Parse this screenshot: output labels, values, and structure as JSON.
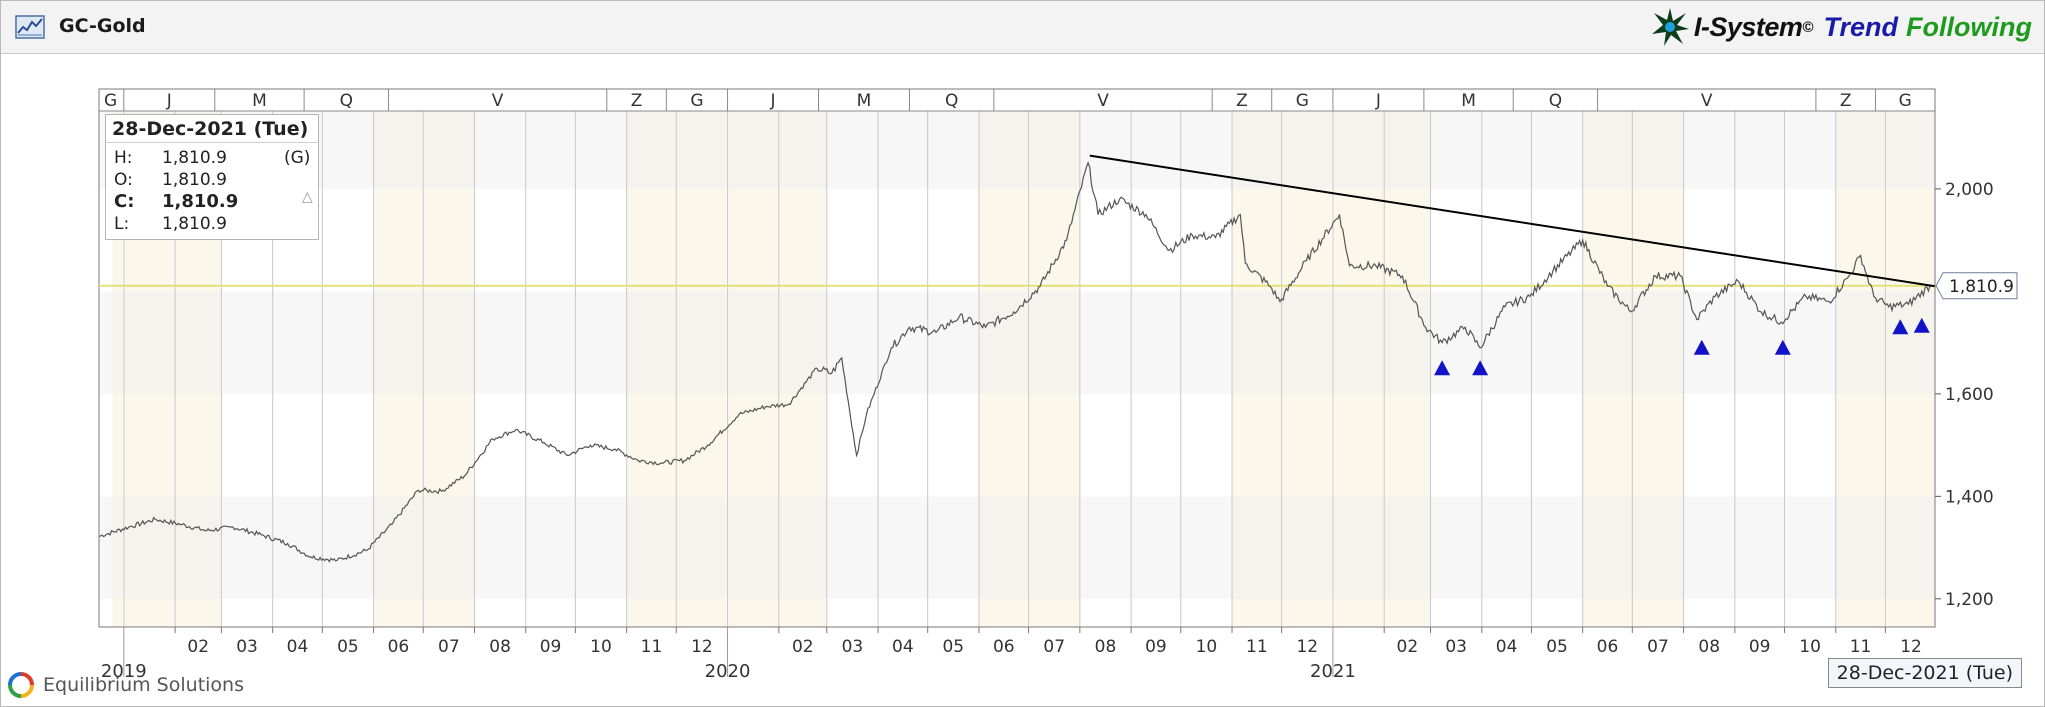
{
  "window": {
    "title": "GC-Gold",
    "brand": {
      "part1": "I-System",
      "sup": "©",
      "part2": "Trend",
      "part3": "Following"
    },
    "footer": "Equilibrium Solutions",
    "cursor_date": "28-Dec-2021 (Tue)"
  },
  "info_box": {
    "date": "28-Dec-2021 (Tue)",
    "tag": "(G)",
    "rows": [
      {
        "label": "H:",
        "value": "1,810.9"
      },
      {
        "label": "O:",
        "value": "1,810.9"
      },
      {
        "label": "C:",
        "value": "1,810.9"
      },
      {
        "label": "L:",
        "value": "1,810.9"
      }
    ]
  },
  "chart_data": {
    "type": "line",
    "title": "GC-Gold",
    "x_range": [
      "2018-12-17",
      "2021-12-31"
    ],
    "ylim": [
      1145,
      2195
    ],
    "y_ticks": [
      1200,
      1400,
      1600,
      2000
    ],
    "y_tick_labels": [
      "1,200",
      "1,400",
      "1,600",
      "2,000"
    ],
    "last_value": 1810.9,
    "last_value_label": "1,810.9",
    "month_labels": [
      "02",
      "03",
      "04",
      "05",
      "06",
      "07",
      "08",
      "09",
      "10",
      "11",
      "12",
      "02",
      "03",
      "04",
      "05",
      "06",
      "07",
      "08",
      "09",
      "10",
      "11",
      "12",
      "02",
      "03",
      "04",
      "05",
      "06",
      "07",
      "08",
      "09",
      "10",
      "11",
      "12"
    ],
    "year_labels": [
      "2019",
      "2020",
      "2021"
    ],
    "phase_labels": [
      "G",
      "J",
      "M",
      "Q",
      "V",
      "Z",
      "G",
      "J",
      "M",
      "Q",
      "V",
      "Z",
      "G",
      "J",
      "M",
      "Q",
      "V",
      "Z",
      "G",
      "J",
      "M",
      "Q",
      "V",
      "Z",
      "G"
    ],
    "series": [
      {
        "x": [
          "2018-12-17",
          "2019-01-04",
          "2019-01-20",
          "2019-02-05",
          "2019-02-20",
          "2019-03-08",
          "2019-03-25",
          "2019-04-10",
          "2019-04-24",
          "2019-05-10",
          "2019-05-28",
          "2019-06-12",
          "2019-06-28",
          "2019-07-12",
          "2019-07-26",
          "2019-08-12",
          "2019-08-26",
          "2019-09-12",
          "2019-09-26",
          "2019-10-10",
          "2019-10-25",
          "2019-11-08",
          "2019-11-22",
          "2019-12-06",
          "2019-12-20",
          "2020-01-08",
          "2020-01-24",
          "2020-02-07",
          "2020-02-24",
          "2020-03-04",
          "2020-03-10",
          "2020-03-19",
          "2020-03-25",
          "2020-04-09",
          "2020-04-20",
          "2020-05-06",
          "2020-05-20",
          "2020-06-05",
          "2020-06-22",
          "2020-07-08",
          "2020-07-24",
          "2020-08-06",
          "2020-08-12",
          "2020-08-25",
          "2020-09-10",
          "2020-09-24",
          "2020-10-08",
          "2020-10-22",
          "2020-11-06",
          "2020-11-09",
          "2020-11-24",
          "2020-11-30",
          "2020-12-16",
          "2021-01-05",
          "2021-01-11",
          "2021-01-27",
          "2021-02-12",
          "2021-02-26",
          "2021-03-08",
          "2021-03-22",
          "2021-03-31",
          "2021-04-15",
          "2021-04-30",
          "2021-05-14",
          "2021-06-01",
          "2021-06-16",
          "2021-06-30",
          "2021-07-15",
          "2021-07-30",
          "2021-08-09",
          "2021-08-20",
          "2021-09-03",
          "2021-09-17",
          "2021-09-29",
          "2021-10-14",
          "2021-10-28",
          "2021-11-09",
          "2021-11-16",
          "2021-11-24",
          "2021-12-03",
          "2021-12-15",
          "2021-12-28"
        ],
        "y": [
          1322,
          1340,
          1355,
          1345,
          1333,
          1340,
          1325,
          1308,
          1282,
          1275,
          1295,
          1345,
          1412,
          1410,
          1440,
          1512,
          1530,
          1505,
          1480,
          1500,
          1492,
          1470,
          1465,
          1470,
          1500,
          1560,
          1575,
          1580,
          1650,
          1640,
          1670,
          1480,
          1560,
          1690,
          1730,
          1720,
          1750,
          1730,
          1760,
          1810,
          1900,
          2051,
          1950,
          1980,
          1950,
          1880,
          1910,
          1905,
          1950,
          1855,
          1810,
          1780,
          1860,
          1950,
          1850,
          1850,
          1830,
          1730,
          1700,
          1730,
          1690,
          1770,
          1790,
          1840,
          1900,
          1810,
          1760,
          1830,
          1830,
          1745,
          1790,
          1820,
          1760,
          1740,
          1790,
          1780,
          1830,
          1870,
          1790,
          1770,
          1775,
          1811
        ]
      }
    ],
    "trend_line": {
      "x": [
        "2020-08-07",
        "2021-12-31"
      ],
      "y": [
        2065,
        1810
      ]
    },
    "horizontal_line": {
      "y": 1810.9
    },
    "markers": {
      "shape": "triangle-up",
      "x": [
        "2021-03-08",
        "2021-03-31",
        "2021-08-12",
        "2021-09-30",
        "2021-12-10",
        "2021-12-23"
      ],
      "y": [
        1650,
        1650,
        1690,
        1690,
        1730,
        1733
      ]
    },
    "colors": {
      "price": "#555555",
      "last_value_line": "#e6e07a",
      "trend": "#000000",
      "markers": "#1212c9",
      "band": "#fbf7ea"
    }
  }
}
